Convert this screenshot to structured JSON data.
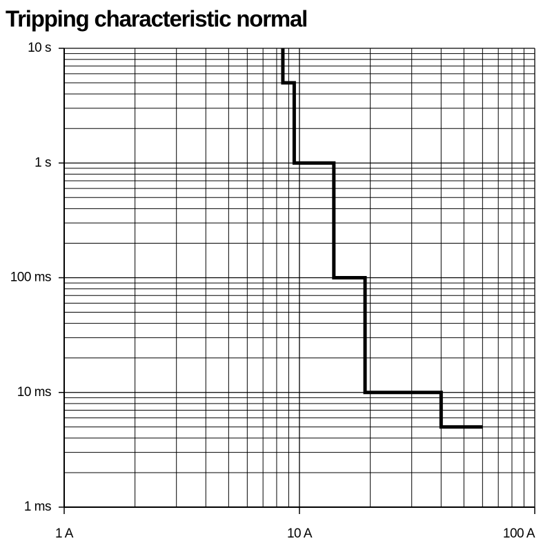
{
  "chart_data": {
    "type": "line",
    "title": "Tripping characteristic normal",
    "x": [
      8.5,
      8.5,
      9.5,
      9.5,
      14,
      14,
      19,
      19,
      40,
      40,
      60
    ],
    "series": [
      {
        "color": "#000000",
        "values": [
          10,
          5,
          5,
          1,
          1,
          0.1,
          0.1,
          0.01,
          0.01,
          0.005,
          0.005
        ]
      }
    ],
    "xlim": [
      1,
      100
    ],
    "xticks": [
      {
        "value": 1,
        "label": "1 A"
      },
      {
        "value": 10,
        "label": "10 A"
      },
      {
        "value": 100,
        "label": "100 A"
      }
    ],
    "ylim": [
      0.001,
      10
    ],
    "yticks": [
      {
        "value": 0.001,
        "label": "1 ms"
      },
      {
        "value": 0.01,
        "label": "10 ms"
      },
      {
        "value": 0.1,
        "label": "100 ms"
      },
      {
        "value": 1,
        "label": "1 s"
      },
      {
        "value": 10,
        "label": "10 s"
      }
    ],
    "xscale": "log",
    "yscale": "log",
    "grid": true,
    "minor_grid": true
  }
}
